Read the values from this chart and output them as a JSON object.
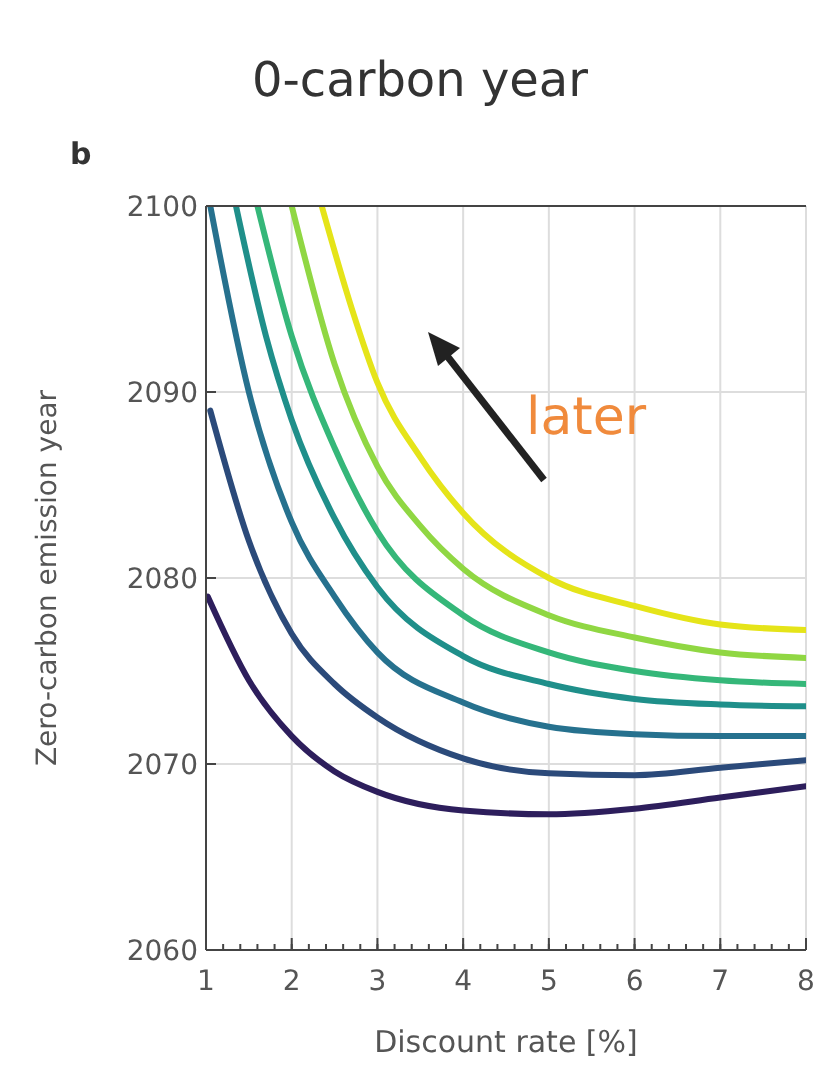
{
  "chart_data": {
    "type": "line",
    "title": "0-carbon year",
    "xlabel": "Discount rate [%]",
    "ylabel": "Zero-carbon emission year",
    "annotations": [
      "b",
      "later"
    ],
    "xlim": [
      1,
      8
    ],
    "xticks": [
      1,
      2,
      3,
      4,
      5,
      6,
      7,
      8
    ],
    "ylim": [
      2060,
      2100
    ],
    "yticks": [
      2060,
      2070,
      2080,
      2090,
      2100
    ],
    "grid": true,
    "line_style": "solid",
    "series": [
      {
        "color": "#2d1e5c",
        "x": [
          1.02,
          1.5,
          2,
          2.5,
          3,
          4,
          5,
          6,
          7,
          8
        ],
        "values": [
          2079,
          2074.5,
          2071.5,
          2069.6,
          2068.5,
          2067.5,
          2067.3,
          2067.6,
          2068.2,
          2068.8
        ]
      },
      {
        "color": "#2b4a7a",
        "x": [
          1.05,
          1.5,
          2,
          2.5,
          3,
          4,
          5,
          6,
          7,
          8
        ],
        "values": [
          2089,
          2082,
          2077,
          2074.3,
          2072.5,
          2070.3,
          2069.5,
          2069.4,
          2069.8,
          2070.2
        ]
      },
      {
        "color": "#26718e",
        "x": [
          1.05,
          1.5,
          2,
          2.5,
          3,
          4,
          5,
          6,
          7,
          8
        ],
        "values": [
          2100,
          2090,
          2083,
          2079,
          2076,
          2073.3,
          2072,
          2071.6,
          2071.5,
          2071.5
        ]
      },
      {
        "color": "#1f8f8a",
        "x": [
          1.35,
          1.7,
          2,
          2.5,
          3,
          4,
          5,
          6,
          7,
          8
        ],
        "values": [
          2100,
          2093,
          2088.5,
          2083.2,
          2079.5,
          2075.8,
          2074.3,
          2073.5,
          2073.2,
          2073.1
        ]
      },
      {
        "color": "#35b779",
        "x": [
          1.6,
          2,
          2.5,
          3,
          4,
          5,
          6,
          7,
          8
        ],
        "values": [
          2100,
          2093,
          2087,
          2082.5,
          2078,
          2076,
          2075,
          2074.5,
          2074.3
        ]
      },
      {
        "color": "#90d743",
        "x": [
          2,
          2.5,
          3,
          3.5,
          4,
          5,
          6,
          7,
          8
        ],
        "values": [
          2100,
          2091.5,
          2086,
          2082.8,
          2080.5,
          2078,
          2076.8,
          2076,
          2075.7
        ]
      },
      {
        "color": "#e5e419",
        "x": [
          2.35,
          2.7,
          3,
          3.5,
          4,
          5,
          6,
          7,
          8
        ],
        "values": [
          2100,
          2094.5,
          2090.5,
          2086.5,
          2083.5,
          2080,
          2078.5,
          2077.5,
          2077.2
        ]
      }
    ]
  }
}
